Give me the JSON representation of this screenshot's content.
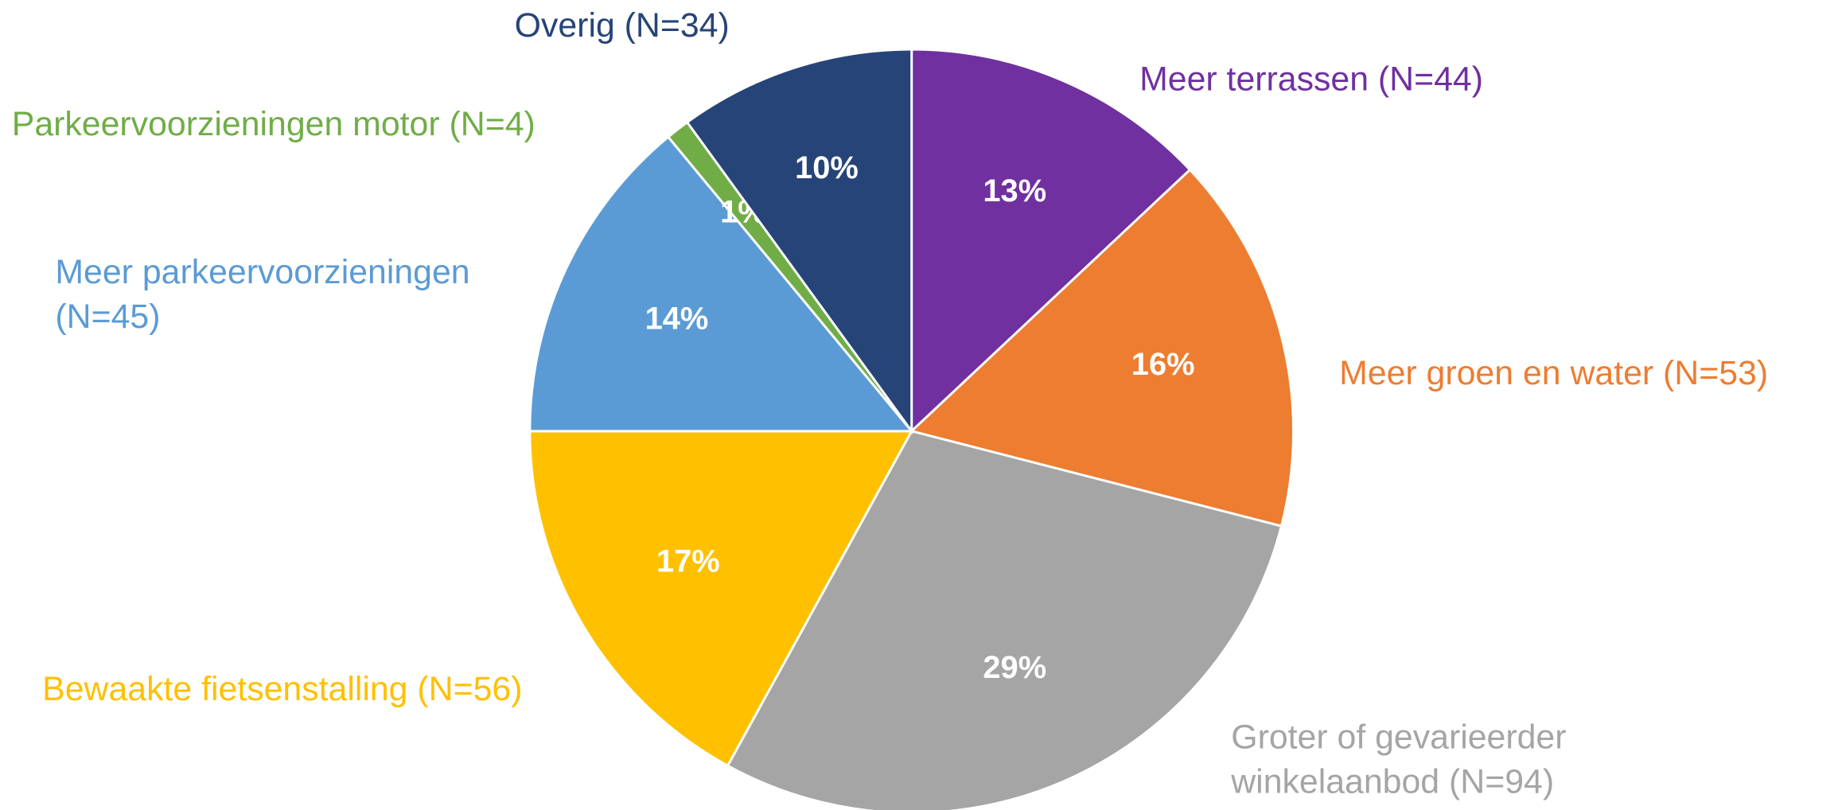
{
  "chart_data": {
    "type": "pie",
    "categories": [
      "Meer terrassen (N=44)",
      "Meer groen en water (N=53)",
      "Groter of gevarieerder winkelaanbod (N=94)",
      "Bewaakte fietsenstalling (N=56)",
      "Meer parkeervoorzieningen (N=45)",
      "Parkeervoorzieningen motor (N=4)",
      "Overig (N=34)"
    ],
    "values": [
      13,
      16,
      29,
      17,
      14,
      1,
      10
    ],
    "value_labels": [
      "13%",
      "16%",
      "29%",
      "17%",
      "14%",
      "1%",
      "10%"
    ],
    "colors": [
      "#7030a0",
      "#ed7d31",
      "#a5a5a5",
      "#ffc000",
      "#5b9bd5",
      "#70ad47",
      "#264478"
    ]
  }
}
